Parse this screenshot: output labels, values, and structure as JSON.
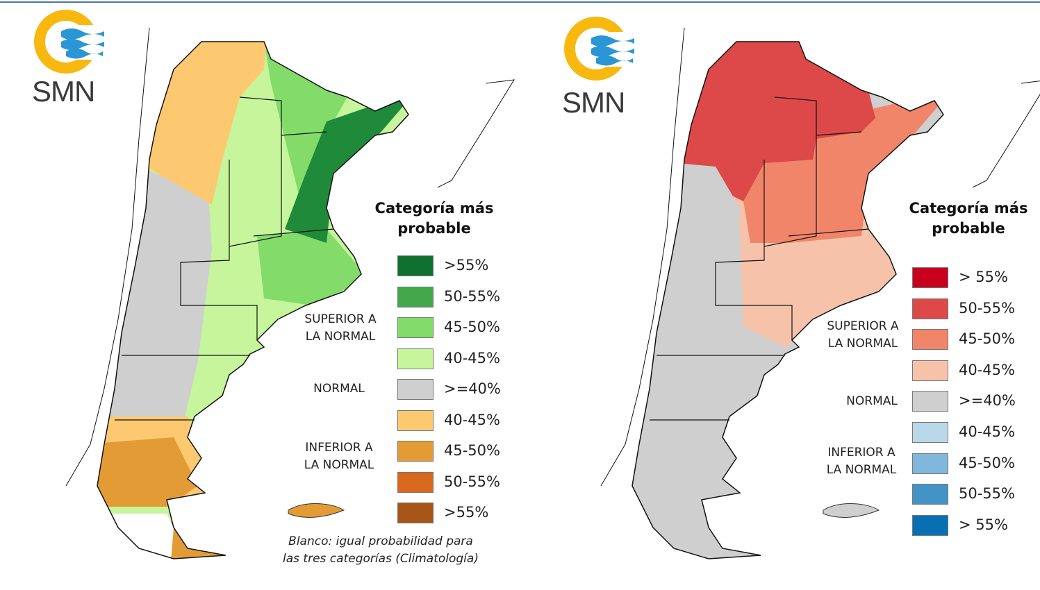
{
  "logos": {
    "text": "SMN"
  },
  "left_map": {
    "legend_title_line1": "Categoría más",
    "legend_title_line2": "probable",
    "superior_line1": "SUPERIOR A",
    "superior_line2": "LA NORMAL",
    "normal": "NORMAL",
    "inferior_line1": "INFERIOR A",
    "inferior_line2": "LA NORMAL",
    "legend": [
      {
        "label": ">55%",
        "color": "#0f7030"
      },
      {
        "label": "50-55%",
        "color": "#43a84c"
      },
      {
        "label": "45-50%",
        "color": "#83dc6a"
      },
      {
        "label": "40-45%",
        "color": "#c6f59c"
      },
      {
        "label": ">=40%",
        "color": "#cfcfcf"
      },
      {
        "label": "40-45%",
        "color": "#fdc970"
      },
      {
        "label": "45-50%",
        "color": "#e39c35"
      },
      {
        "label": "50-55%",
        "color": "#d9691c"
      },
      {
        "label": ">55%",
        "color": "#a8551a"
      }
    ],
    "note_line1": "Blanco: igual probabilidad para",
    "note_line2": "las tres categorías (Climatología)"
  },
  "right_map": {
    "legend_title_line1": "Categoría más",
    "legend_title_line2": "probable",
    "superior_line1": "SUPERIOR A",
    "superior_line2": "LA NORMAL",
    "normal": "NORMAL",
    "inferior_line1": "INFERIOR A",
    "inferior_line2": "LA NORMAL",
    "legend": [
      {
        "label": "> 55%",
        "color": "#c8001e"
      },
      {
        "label": "50-55%",
        "color": "#dd4848"
      },
      {
        "label": "45-50%",
        "color": "#f0856a"
      },
      {
        "label": "40-45%",
        "color": "#f6c3aa"
      },
      {
        "label": ">=40%",
        "color": "#cfcfcf"
      },
      {
        "label": "40-45%",
        "color": "#b9d9ea"
      },
      {
        "label": "45-50%",
        "color": "#7fb8da"
      },
      {
        "label": "50-55%",
        "color": "#4393c6"
      },
      {
        "label": "> 55%",
        "color": "#0870b2"
      }
    ]
  }
}
